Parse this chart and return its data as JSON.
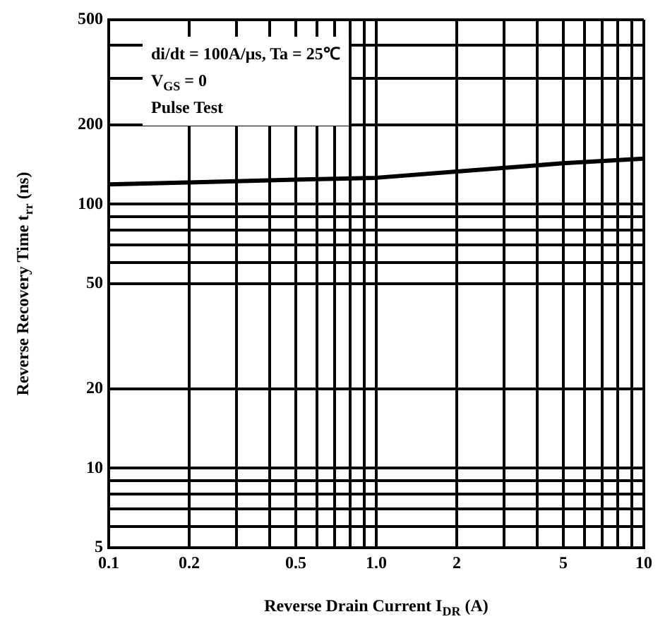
{
  "chart_data": {
    "type": "line",
    "xlabel": "Reverse Drain Current I$_{DR}$ (A)",
    "ylabel": "Reverse Recovery Time t$_{rr}$ (ns)",
    "annotations": [
      "di/dt = 100A/μs, Ta = 25℃",
      "V$_{GS}$ = 0",
      "Pulse Test"
    ],
    "x": [
      0.1,
      0.2,
      0.5,
      1,
      2,
      5,
      10
    ],
    "series": [
      {
        "color": "#000000",
        "values": [
          119,
          121,
          124,
          126,
          133,
          143,
          149
        ]
      }
    ],
    "log": "xy",
    "xlim": [
      0.1,
      10
    ],
    "ylim": [
      5,
      500
    ],
    "xticks": [
      0.1,
      0.2,
      {
        "value": 0.3,
        "label": null
      },
      {
        "value": 0.4,
        "label": null
      },
      0.5,
      {
        "value": 0.6,
        "label": null
      },
      {
        "value": 0.7,
        "label": null
      },
      {
        "value": 0.8,
        "label": null
      },
      {
        "value": 0.9,
        "label": null
      },
      {
        "value": 1,
        "label": "1.0"
      },
      2,
      {
        "value": 3,
        "label": null
      },
      {
        "value": 4,
        "label": null
      },
      5,
      {
        "value": 6,
        "label": null
      },
      {
        "value": 7,
        "label": null
      },
      {
        "value": 8,
        "label": null
      },
      {
        "value": 9,
        "label": null
      },
      10
    ],
    "yticks": [
      5,
      {
        "value": 6,
        "label": null
      },
      {
        "value": 7,
        "label": null
      },
      {
        "value": 8,
        "label": null
      },
      {
        "value": 9,
        "label": null
      },
      10,
      20,
      50,
      {
        "value": 60,
        "label": null
      },
      {
        "value": 70,
        "label": null
      },
      {
        "value": 80,
        "label": null
      },
      {
        "value": 90,
        "label": null
      },
      100,
      200,
      {
        "value": 300,
        "label": null
      },
      {
        "value": 400,
        "label": null
      },
      500
    ],
    "grid": true,
    "marker": "none",
    "line_style": "solid",
    "legend": false
  }
}
